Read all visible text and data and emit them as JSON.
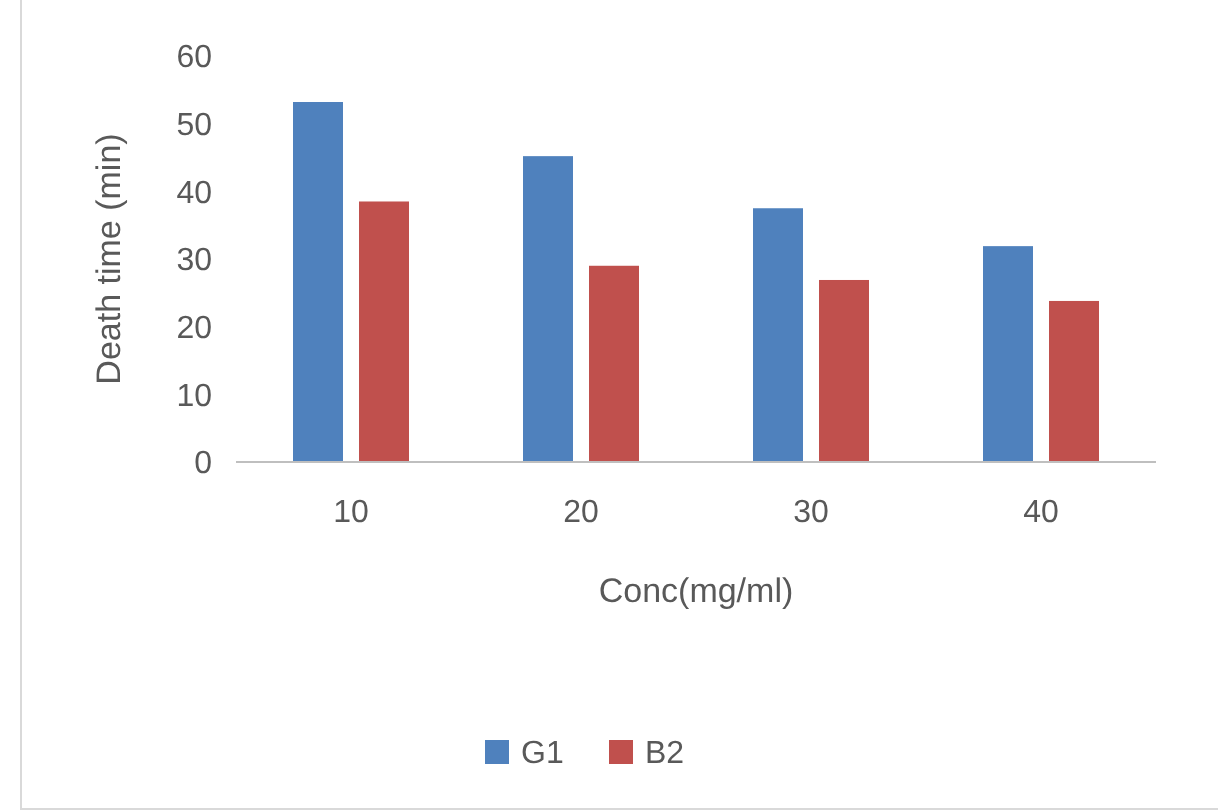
{
  "chart_data": {
    "type": "bar",
    "xlabel": "Conc(mg/ml)",
    "ylabel": "Death time (min)",
    "categories": [
      "10",
      "20",
      "30",
      "40"
    ],
    "series": [
      {
        "name": "G1",
        "color": "#4f81bd",
        "values": [
          53.2,
          45.2,
          37.5,
          31.9
        ]
      },
      {
        "name": "B2",
        "color": "#c0504d",
        "values": [
          38.5,
          29,
          26.9,
          23.8
        ]
      }
    ],
    "ylim": [
      0,
      60
    ],
    "yticks": [
      0,
      10,
      20,
      30,
      40,
      50,
      60
    ],
    "grid": false,
    "legend": "bottom"
  }
}
